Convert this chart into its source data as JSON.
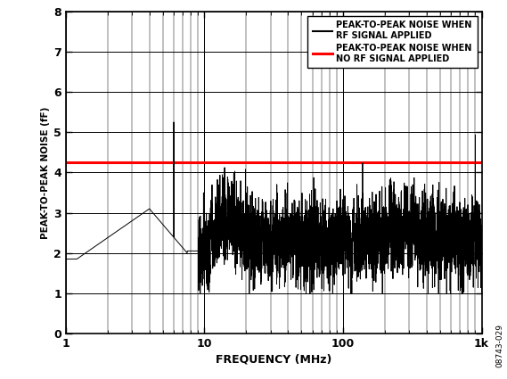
{
  "title": "",
  "xlabel": "FREQUENCY (MHz)",
  "ylabel": "PEAK-TO-PEAK NOISE (fF)",
  "xlim": [
    1,
    1000
  ],
  "ylim": [
    0,
    8
  ],
  "yticks": [
    0,
    1,
    2,
    3,
    4,
    5,
    6,
    7,
    8
  ],
  "red_line_y": 4.25,
  "legend_entries": [
    "PEAK-TO-PEAK NOISE WHEN\nRF SIGNAL APPLIED",
    "PEAK-TO-PEAK NOISE WHEN\nNO RF SIGNAL APPLIED"
  ],
  "legend_colors": [
    "#000000",
    "#ff0000"
  ],
  "watermark": "08743-029",
  "background_color": "#ffffff",
  "grid_color": "#000000"
}
